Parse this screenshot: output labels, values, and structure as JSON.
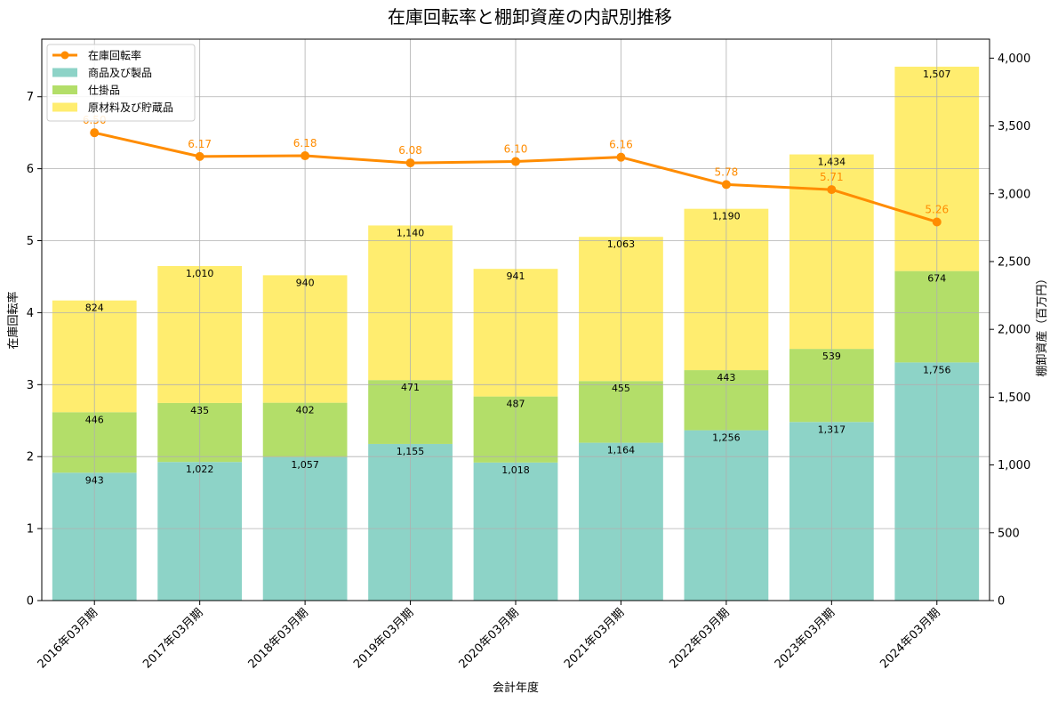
{
  "chart_data": {
    "type": "bar",
    "title": "在庫回転率と棚卸資産の内訳別推移",
    "xlabel": "会計年度",
    "ylabel_left": "在庫回転率",
    "ylabel_right": "棚卸資産（百万円）",
    "categories": [
      "2016年03月期",
      "2017年03月期",
      "2018年03月期",
      "2019年03月期",
      "2020年03月期",
      "2021年03月期",
      "2022年03月期",
      "2023年03月期",
      "2024年03月期"
    ],
    "y_left_lim": [
      0,
      7.8
    ],
    "y_left_ticks": [
      "0",
      "1",
      "2",
      "3",
      "4",
      "5",
      "6",
      "7"
    ],
    "y_right_lim": [
      0,
      4140
    ],
    "y_right_ticks": [
      "0",
      "500",
      "1,000",
      "1,500",
      "2,000",
      "2,500",
      "3,000",
      "3,500",
      "4,000"
    ],
    "grid": true,
    "legend_position": "top-left",
    "series": [
      {
        "name": "商品及び製品",
        "kind": "stacked-bar",
        "axis": "right",
        "color": "#8dd3c7",
        "values": [
          943,
          1022,
          1057,
          1155,
          1018,
          1164,
          1256,
          1317,
          1756
        ],
        "labels": [
          "943",
          "1,022",
          "1,057",
          "1,155",
          "1,018",
          "1,164",
          "1,256",
          "1,317",
          "1,756"
        ]
      },
      {
        "name": "仕掛品",
        "kind": "stacked-bar",
        "axis": "right",
        "color": "#b3de69",
        "values": [
          446,
          435,
          402,
          471,
          487,
          455,
          443,
          539,
          674
        ],
        "labels": [
          "446",
          "435",
          "402",
          "471",
          "487",
          "455",
          "443",
          "539",
          "674"
        ]
      },
      {
        "name": "原材料及び貯蔵品",
        "kind": "stacked-bar",
        "axis": "right",
        "color": "#ffed6f",
        "values": [
          824,
          1010,
          940,
          1140,
          941,
          1063,
          1190,
          1434,
          1507
        ],
        "labels": [
          "824",
          "1,010",
          "940",
          "1,140",
          "941",
          "1,063",
          "1,190",
          "1,434",
          "1,507"
        ]
      },
      {
        "name": "在庫回転率",
        "kind": "line",
        "axis": "left",
        "color": "#ff8c00",
        "values": [
          6.5,
          6.17,
          6.18,
          6.08,
          6.1,
          6.16,
          5.78,
          5.71,
          5.26
        ],
        "labels": [
          "6.50",
          "6.17",
          "6.18",
          "6.08",
          "6.10",
          "6.16",
          "5.78",
          "5.71",
          "5.26"
        ]
      }
    ]
  }
}
